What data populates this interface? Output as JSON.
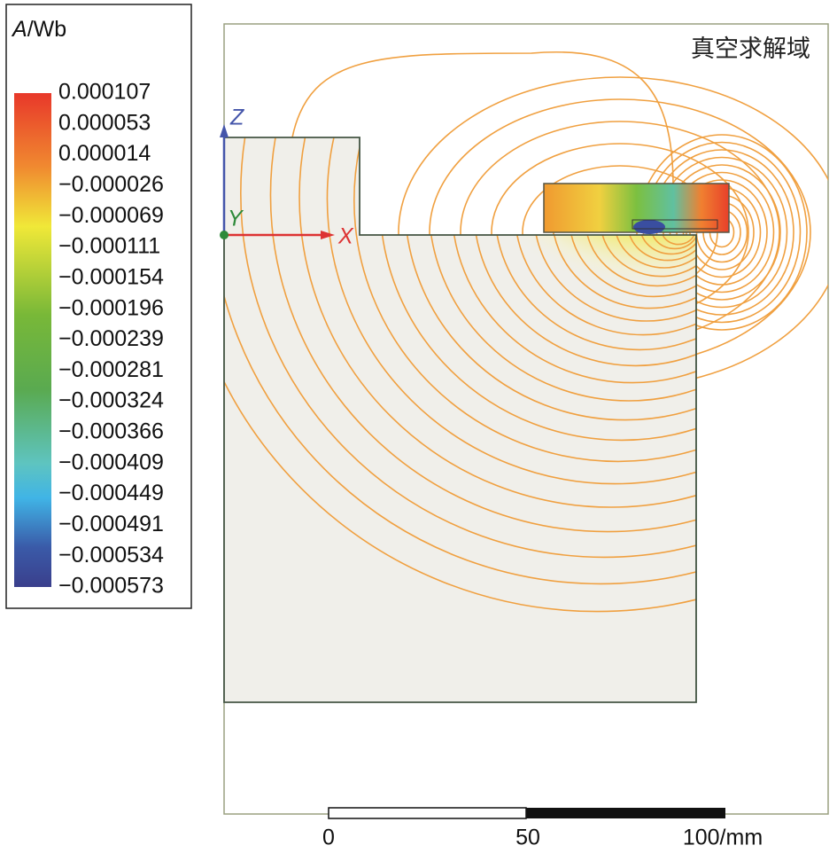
{
  "legend": {
    "symbol": "A",
    "unit": "/Wb",
    "labels": [
      "0.000107",
      "0.000053",
      "0.000014",
      "−0.000026",
      "−0.000069",
      "−0.000111",
      "−0.000154",
      "−0.000196",
      "−0.000239",
      "−0.000281",
      "−0.000324",
      "−0.000366",
      "−0.000409",
      "−0.000449",
      "−0.000491",
      "−0.000534",
      "−0.000573"
    ]
  },
  "axes": {
    "z": "Z",
    "y": "Y",
    "x": "X"
  },
  "region_label": "真空求解域",
  "scale_bar": {
    "labels": [
      "0",
      "50",
      "100/mm"
    ]
  }
}
